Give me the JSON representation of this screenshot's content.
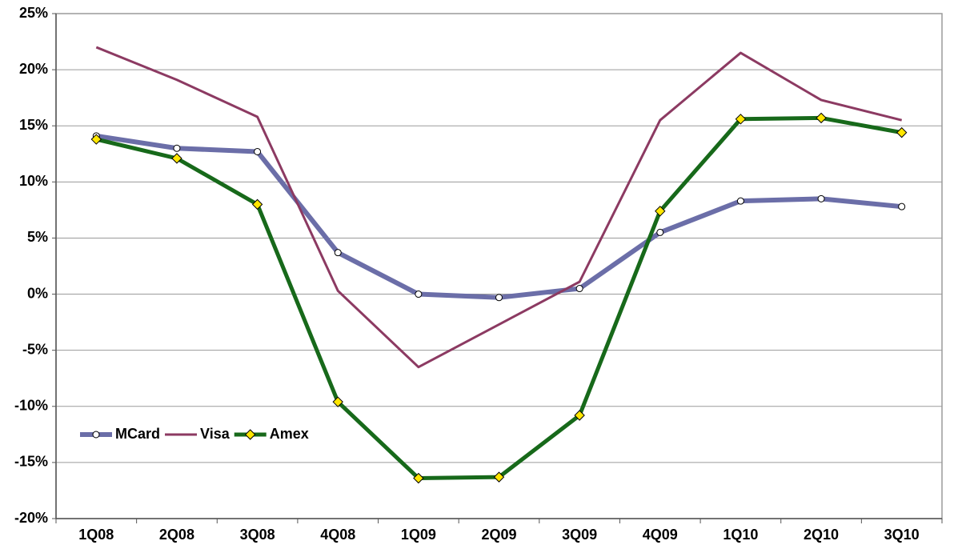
{
  "chart_data": {
    "type": "line",
    "categories": [
      "1Q08",
      "2Q08",
      "3Q08",
      "4Q08",
      "1Q09",
      "2Q09",
      "3Q09",
      "4Q09",
      "1Q10",
      "2Q10",
      "3Q10"
    ],
    "series": [
      {
        "name": "MCard",
        "color": "#6b6ea8",
        "marker": "circle",
        "line_width": 6,
        "values": [
          14.1,
          13.0,
          12.7,
          3.7,
          0.0,
          -0.3,
          0.5,
          5.5,
          8.3,
          8.5,
          7.8
        ]
      },
      {
        "name": "Visa",
        "color": "#8c3a62",
        "marker": null,
        "line_width": 3,
        "values": [
          22.0,
          19.1,
          15.8,
          0.3,
          -6.5,
          -2.7,
          1.1,
          15.5,
          21.5,
          17.3,
          15.5
        ]
      },
      {
        "name": "Amex",
        "color": "#17691a",
        "marker": "diamond",
        "line_width": 5,
        "values": [
          13.8,
          12.1,
          8.0,
          -9.6,
          -16.4,
          -16.3,
          -10.8,
          7.4,
          15.6,
          15.7,
          14.4
        ]
      }
    ],
    "ylim": [
      -20,
      25
    ],
    "yticks": [
      {
        "value": -20,
        "label": "-20%"
      },
      {
        "value": -15,
        "label": "-15%"
      },
      {
        "value": -10,
        "label": "-10%"
      },
      {
        "value": -5,
        "label": "-5%"
      },
      {
        "value": 0,
        "label": "0%"
      },
      {
        "value": 5,
        "label": "5%"
      },
      {
        "value": 10,
        "label": "10%"
      },
      {
        "value": 15,
        "label": "15%"
      },
      {
        "value": 20,
        "label": "20%"
      },
      {
        "value": 25,
        "label": "25%"
      }
    ],
    "grid": true,
    "legend": "lower left"
  }
}
